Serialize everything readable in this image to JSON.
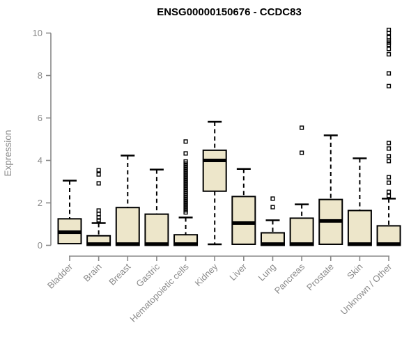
{
  "title": "ENSG00000150676 - CCDC83",
  "chart_data": {
    "type": "boxplot",
    "title": "ENSG00000150676 - CCDC83",
    "xlabel": "",
    "ylabel": "Expression",
    "ylim": [
      0,
      10
    ],
    "yticks": [
      0,
      2,
      4,
      6,
      8,
      10
    ],
    "grid": false,
    "legend": "none",
    "colors": {
      "box_fill": "#EDE6CA",
      "box_border": "#000000",
      "median": "#000000",
      "whisker": "#000000",
      "outlier": "#000000",
      "axis_line": "#888888",
      "tick_label": "#8a8a8a",
      "title_text": "#000000",
      "background": "#ffffff"
    },
    "categories": [
      "Bladder",
      "Brain",
      "Breast",
      "Gastric",
      "Hematopoietic cells",
      "Kidney",
      "Liver",
      "Lung",
      "Pancreas",
      "Prostate",
      "Skin",
      "Unknown / Other"
    ],
    "series": [
      {
        "name": "Bladder",
        "whisker_low": 0,
        "q1": 0.08,
        "median": 0.62,
        "q3": 1.25,
        "whisker_high": 3.05,
        "outliers": []
      },
      {
        "name": "Brain",
        "whisker_low": 0,
        "q1": 0,
        "median": 0.06,
        "q3": 0.45,
        "whisker_high": 1.05,
        "outliers": [
          1.18,
          1.31,
          1.48,
          1.64,
          2.92,
          3.34,
          3.54
        ]
      },
      {
        "name": "Breast",
        "whisker_low": 0,
        "q1": 0,
        "median": 0.06,
        "q3": 1.78,
        "whisker_high": 4.23,
        "outliers": []
      },
      {
        "name": "Gastric",
        "whisker_low": 0,
        "q1": 0,
        "median": 0.06,
        "q3": 1.47,
        "whisker_high": 3.57,
        "outliers": []
      },
      {
        "name": "Hematopoietic cells",
        "whisker_low": 0,
        "q1": 0,
        "median": 0.06,
        "q3": 0.5,
        "whisker_high": 1.31,
        "outliers": [
          1.55,
          1.65,
          1.75,
          1.85,
          1.95,
          2.05,
          2.15,
          2.25,
          2.35,
          2.45,
          2.55,
          2.65,
          2.75,
          2.85,
          2.95,
          3.05,
          3.15,
          3.25,
          3.35,
          3.45,
          3.55,
          3.65,
          3.75,
          3.85,
          3.95,
          4.33,
          4.89
        ]
      },
      {
        "name": "Kidney",
        "whisker_low": 0.05,
        "q1": 2.55,
        "median": 4.0,
        "q3": 4.48,
        "whisker_high": 5.82,
        "outliers": []
      },
      {
        "name": "Liver",
        "whisker_low": 0,
        "q1": 0.05,
        "median": 1.05,
        "q3": 2.3,
        "whisker_high": 3.6,
        "outliers": []
      },
      {
        "name": "Lung",
        "whisker_low": 0,
        "q1": 0,
        "median": 0.06,
        "q3": 0.59,
        "whisker_high": 1.18,
        "outliers": [
          1.8,
          2.2
        ]
      },
      {
        "name": "Pancreas",
        "whisker_low": 0,
        "q1": 0,
        "median": 0.06,
        "q3": 1.28,
        "whisker_high": 1.93,
        "outliers": [
          4.36,
          5.54
        ]
      },
      {
        "name": "Prostate",
        "whisker_low": 0,
        "q1": 0.05,
        "median": 1.15,
        "q3": 2.16,
        "whisker_high": 5.18,
        "outliers": []
      },
      {
        "name": "Skin",
        "whisker_low": 0,
        "q1": 0,
        "median": 0.06,
        "q3": 1.64,
        "whisker_high": 4.1,
        "outliers": []
      },
      {
        "name": "Unknown / Other",
        "whisker_low": 0,
        "q1": 0,
        "median": 0.06,
        "q3": 0.92,
        "whisker_high": 2.2,
        "outliers": [
          2.33,
          2.52,
          2.95,
          3.21,
          3.97,
          4.2,
          4.56,
          4.82,
          7.5,
          8.1,
          9.0,
          9.25,
          9.45,
          9.55,
          9.65,
          9.8,
          10.0,
          10.15
        ]
      }
    ]
  }
}
